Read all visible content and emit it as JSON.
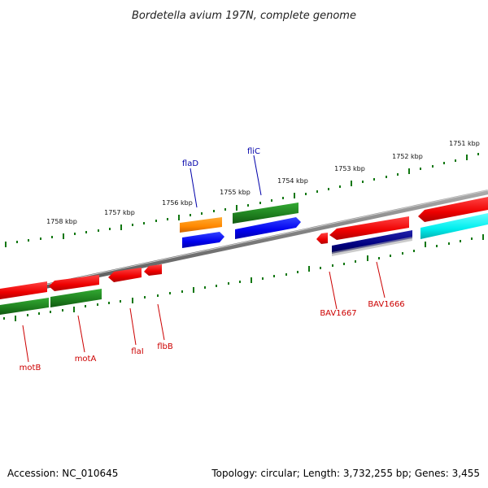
{
  "title": "Bordetella avium 197N, complete genome",
  "footer": {
    "accession": "Accession: NC_010645",
    "summary": "Topology: circular; Length: 3,732,255 bp; Genes: 3,455"
  },
  "tick_labels": [
    "1751 kbp",
    "1752 kbp",
    "1753 kbp",
    "1754 kbp",
    "1755 kbp",
    "1756 kbp",
    "1757 kbp",
    "1758 kbp"
  ],
  "gene_labels_blue": [
    "flaD",
    "fliC"
  ],
  "gene_labels_red": [
    "BAV1667",
    "BAV1666",
    "motB",
    "motA",
    "flaI",
    "flbB"
  ],
  "colors": {
    "red": "#ee1111",
    "green": "#228822",
    "blue": "#0000ee",
    "orange": "#ff8800",
    "navy": "#000080",
    "cyan": "#00eeee",
    "backbone": "#777777",
    "tick": "#117711"
  }
}
